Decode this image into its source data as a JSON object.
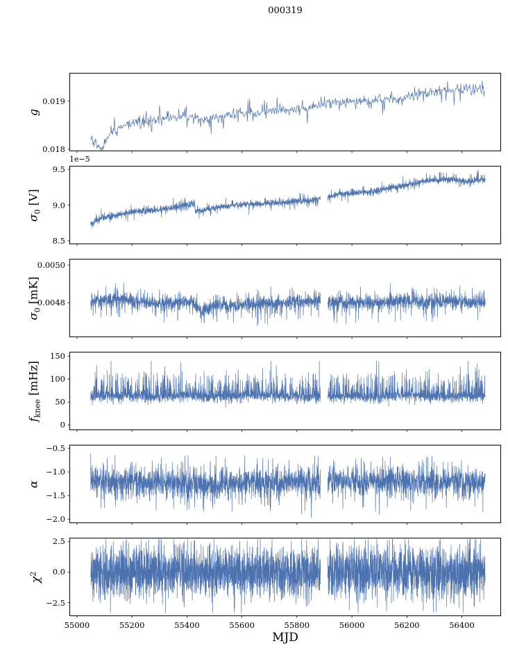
{
  "line_color": "#4c72b0",
  "chart_data": {
    "type": "line",
    "title": "000319",
    "xlabel": "MJD",
    "xlim": [
      54975,
      56540
    ],
    "x_data_range": [
      55050,
      56485
    ],
    "x_ticks": [
      55000,
      55200,
      55400,
      55600,
      55800,
      56000,
      56200,
      56400
    ],
    "x_tick_labels": [
      "55000",
      "55200",
      "55400",
      "55600",
      "55800",
      "56000",
      "56200",
      "56400"
    ],
    "legend": "none",
    "grid": false,
    "panels": [
      {
        "id": "g",
        "ylabel_text": "g",
        "ylabel_segments": [
          {
            "t": "g",
            "italic": true
          }
        ],
        "ylim": [
          0.01797,
          0.01957
        ],
        "yticks": [
          {
            "v": 0.018,
            "label": "0.018"
          },
          {
            "v": 0.019,
            "label": "0.019"
          }
        ],
        "offset_text": "",
        "seed": 101,
        "step": 2,
        "noise_sigma": 5e-05,
        "spikes": [
          {
            "p": 0.1,
            "amp": 0.00028,
            "sign": 1
          },
          {
            "p": 0.1,
            "amp": 0.00028,
            "sign": -1
          }
        ],
        "gaps": [],
        "trend": [
          [
            55050,
            0.01822
          ],
          [
            55070,
            0.01812
          ],
          [
            55090,
            0.01802
          ],
          [
            55105,
            0.01818
          ],
          [
            55125,
            0.01838
          ],
          [
            55150,
            0.01845
          ],
          [
            55180,
            0.01852
          ],
          [
            55220,
            0.01858
          ],
          [
            55260,
            0.01861
          ],
          [
            55300,
            0.01863
          ],
          [
            55340,
            0.01866
          ],
          [
            55380,
            0.01868
          ],
          [
            55420,
            0.01867
          ],
          [
            55460,
            0.0186
          ],
          [
            55500,
            0.01866
          ],
          [
            55540,
            0.0187
          ],
          [
            55580,
            0.01874
          ],
          [
            55620,
            0.01876
          ],
          [
            55650,
            0.01872
          ],
          [
            55680,
            0.01879
          ],
          [
            55720,
            0.01881
          ],
          [
            55760,
            0.01879
          ],
          [
            55800,
            0.01884
          ],
          [
            55840,
            0.01886
          ],
          [
            55870,
            0.0189
          ],
          [
            55900,
            0.01892
          ],
          [
            55930,
            0.01896
          ],
          [
            55960,
            0.01898
          ],
          [
            56000,
            0.019
          ],
          [
            56040,
            0.01898
          ],
          [
            56080,
            0.01902
          ],
          [
            56120,
            0.01904
          ],
          [
            56160,
            0.01903
          ],
          [
            56200,
            0.01908
          ],
          [
            56240,
            0.01916
          ],
          [
            56280,
            0.01918
          ],
          [
            56320,
            0.0192
          ],
          [
            56360,
            0.01922
          ],
          [
            56400,
            0.01925
          ],
          [
            56440,
            0.01923
          ],
          [
            56480,
            0.01927
          ],
          [
            56510,
            0.01926
          ]
        ]
      },
      {
        "id": "sigma0-v",
        "ylabel_text": "σ0 [V]",
        "ylabel_segments": [
          {
            "t": "σ",
            "italic": true
          },
          {
            "t": "0",
            "sub": true
          },
          {
            "t": " [V]"
          }
        ],
        "ylim": [
          8.46,
          9.54
        ],
        "yticks": [
          {
            "v": 8.5,
            "label": "8.5"
          },
          {
            "v": 9.0,
            "label": "9.0"
          },
          {
            "v": 9.5,
            "label": "9.5"
          }
        ],
        "offset_text": "1e−5",
        "seed": 202,
        "step": 0.5,
        "noise_sigma": 0.022,
        "spikes": [
          {
            "p": 0.1,
            "amp": 0.1,
            "sign": 1
          },
          {
            "p": 0.1,
            "amp": 0.1,
            "sign": -1
          }
        ],
        "gaps": [
          [
            55886,
            55912
          ]
        ],
        "trend": [
          [
            55050,
            8.72
          ],
          [
            55070,
            8.78
          ],
          [
            55090,
            8.82
          ],
          [
            55120,
            8.84
          ],
          [
            55160,
            8.87
          ],
          [
            55200,
            8.9
          ],
          [
            55240,
            8.92
          ],
          [
            55280,
            8.93
          ],
          [
            55320,
            8.95
          ],
          [
            55360,
            8.97
          ],
          [
            55400,
            9.0
          ],
          [
            55427,
            9.03
          ],
          [
            55431,
            8.91
          ],
          [
            55470,
            8.94
          ],
          [
            55510,
            8.96
          ],
          [
            55560,
            8.99
          ],
          [
            55610,
            9.01
          ],
          [
            55660,
            9.02
          ],
          [
            55710,
            9.03
          ],
          [
            55760,
            9.04
          ],
          [
            55810,
            9.06
          ],
          [
            55840,
            9.05
          ],
          [
            55870,
            9.08
          ],
          [
            55900,
            9.11
          ],
          [
            55940,
            9.14
          ],
          [
            55980,
            9.16
          ],
          [
            56020,
            9.17
          ],
          [
            56060,
            9.18
          ],
          [
            56100,
            9.2
          ],
          [
            56140,
            9.24
          ],
          [
            56180,
            9.27
          ],
          [
            56220,
            9.3
          ],
          [
            56260,
            9.33
          ],
          [
            56300,
            9.35
          ],
          [
            56340,
            9.36
          ],
          [
            56380,
            9.35
          ],
          [
            56420,
            9.33
          ],
          [
            56460,
            9.35
          ],
          [
            56500,
            9.36
          ]
        ]
      },
      {
        "id": "sigma0-mk",
        "ylabel_text": "σ0 [mK]",
        "ylabel_segments": [
          {
            "t": "σ",
            "italic": true
          },
          {
            "t": "0",
            "sub": true
          },
          {
            "t": " [mK]"
          }
        ],
        "ylim": [
          0.00462,
          0.00503
        ],
        "yticks": [
          {
            "v": 0.0048,
            "label": "0.0048"
          },
          {
            "v": 0.005,
            "label": "0.0050"
          }
        ],
        "offset_text": "",
        "seed": 303,
        "step": 0.5,
        "noise_sigma": 1.8e-05,
        "spikes": [
          {
            "p": 0.12,
            "amp": 0.0001,
            "sign": -1
          },
          {
            "p": 0.12,
            "amp": 7e-05,
            "sign": 1
          }
        ],
        "gaps": [
          [
            55886,
            55912
          ]
        ],
        "trend": [
          [
            55050,
            0.00481
          ],
          [
            55150,
            0.00482
          ],
          [
            55250,
            0.0048
          ],
          [
            55350,
            0.0048
          ],
          [
            55420,
            0.00481
          ],
          [
            55450,
            0.00475
          ],
          [
            55480,
            0.00477
          ],
          [
            55520,
            0.00479
          ],
          [
            55560,
            0.00478
          ],
          [
            55620,
            0.00479
          ],
          [
            55700,
            0.0048
          ],
          [
            55780,
            0.0048
          ],
          [
            55860,
            0.00481
          ],
          [
            55940,
            0.0048
          ],
          [
            56020,
            0.0048
          ],
          [
            56100,
            0.0048
          ],
          [
            56180,
            0.00481
          ],
          [
            56260,
            0.0048
          ],
          [
            56340,
            0.00481
          ],
          [
            56420,
            0.0048
          ],
          [
            56510,
            0.00481
          ]
        ]
      },
      {
        "id": "fknee",
        "ylabel_text": "fknee [mHz]",
        "ylabel_segments": [
          {
            "t": "f",
            "italic": true
          },
          {
            "t": "knee",
            "sub": true
          },
          {
            "t": " [mHz]"
          }
        ],
        "ylim": [
          -10,
          158
        ],
        "yticks": [
          {
            "v": 0,
            "label": "0"
          },
          {
            "v": 50,
            "label": "50"
          },
          {
            "v": 100,
            "label": "100"
          },
          {
            "v": 150,
            "label": "150"
          }
        ],
        "offset_text": "",
        "seed": 404,
        "step": 0.5,
        "noise_sigma": 6,
        "spikes": [
          {
            "p": 0.3,
            "amp": 50,
            "sign": 1
          },
          {
            "p": 0.05,
            "amp": 65,
            "sign": 1
          },
          {
            "p": 0.08,
            "amp": 14,
            "sign": -1
          }
        ],
        "clip": [
          38,
          140
        ],
        "gaps": [
          [
            55886,
            55912
          ]
        ],
        "trend": [
          [
            55050,
            62
          ],
          [
            55200,
            63
          ],
          [
            55300,
            60
          ],
          [
            55400,
            64
          ],
          [
            55500,
            60
          ],
          [
            55600,
            63
          ],
          [
            55700,
            64
          ],
          [
            55800,
            61
          ],
          [
            55900,
            60
          ],
          [
            56000,
            63
          ],
          [
            56100,
            60
          ],
          [
            56200,
            64
          ],
          [
            56300,
            60
          ],
          [
            56400,
            63
          ],
          [
            56510,
            63
          ]
        ]
      },
      {
        "id": "alpha",
        "ylabel_text": "α",
        "ylabel_segments": [
          {
            "t": "α",
            "italic": true
          }
        ],
        "ylim": [
          -2.07,
          -0.44
        ],
        "yticks": [
          {
            "v": -0.5,
            "label": "−0.5"
          },
          {
            "v": -1.0,
            "label": "−1.0"
          },
          {
            "v": -1.5,
            "label": "−1.5"
          },
          {
            "v": -2.0,
            "label": "−2.0"
          }
        ],
        "offset_text": "",
        "seed": 505,
        "step": 0.5,
        "noise_sigma": 0.14,
        "spikes": [
          {
            "p": 0.15,
            "amp": 0.5,
            "sign": -1
          },
          {
            "p": 0.15,
            "amp": 0.45,
            "sign": 1
          }
        ],
        "clip": [
          -1.97,
          -0.55
        ],
        "gaps": [
          [
            55886,
            55912
          ]
        ],
        "trend": [
          [
            55050,
            -1.2
          ],
          [
            55300,
            -1.22
          ],
          [
            55450,
            -1.3
          ],
          [
            55600,
            -1.22
          ],
          [
            55800,
            -1.2
          ],
          [
            55900,
            -1.22
          ],
          [
            56100,
            -1.2
          ],
          [
            56300,
            -1.22
          ],
          [
            56510,
            -1.2
          ]
        ]
      },
      {
        "id": "chi2",
        "ylabel_text": "χ2",
        "ylabel_segments": [
          {
            "t": "χ",
            "italic": true
          },
          {
            "t": "2",
            "sup": true
          }
        ],
        "ylim": [
          -3.55,
          2.75
        ],
        "yticks": [
          {
            "v": 2.5,
            "label": "2.5"
          },
          {
            "v": 0.0,
            "label": "0.0"
          },
          {
            "v": -2.5,
            "label": "−2.5"
          }
        ],
        "offset_text": "",
        "seed": 606,
        "step": 0.4,
        "noise_sigma": 1.05,
        "spikes": [
          {
            "p": 0.12,
            "amp": 1.5,
            "sign": 1
          },
          {
            "p": 0.12,
            "amp": 1.5,
            "sign": -1
          }
        ],
        "clip": [
          -3.35,
          2.7
        ],
        "gaps": [
          [
            55886,
            55912
          ]
        ],
        "trend": [
          [
            55050,
            0
          ],
          [
            56510,
            0
          ]
        ]
      }
    ]
  }
}
